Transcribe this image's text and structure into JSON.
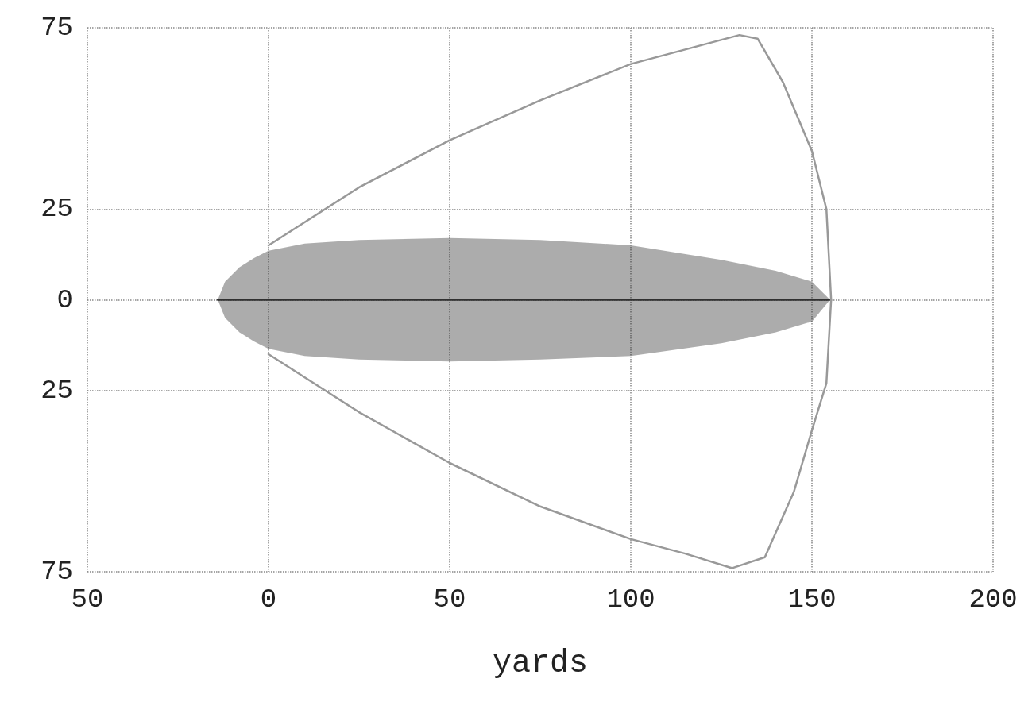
{
  "chart_data": {
    "type": "line",
    "xlabel": "yards",
    "xlim": [
      -50,
      200
    ],
    "ylim": [
      -75,
      75
    ],
    "xticks": [
      {
        "value": -50,
        "label": "50"
      },
      0,
      50,
      100,
      150,
      200
    ],
    "yticks": [
      {
        "value": -75,
        "label": "75"
      },
      {
        "value": -25,
        "label": "25"
      },
      0,
      25,
      75
    ],
    "grid": true,
    "marker": "none",
    "line_style": "solid",
    "series": [
      {
        "color": "#303030",
        "x": [
          -14,
          -12,
          -8,
          -4,
          0,
          10,
          25,
          50,
          75,
          100,
          125,
          140,
          150,
          155
        ],
        "values": [
          0,
          0,
          0,
          0,
          0,
          0,
          0,
          0,
          0,
          0,
          0,
          0,
          0,
          0
        ],
        "lower": [
          0,
          -5,
          -9,
          -11.5,
          -13.5,
          -15.5,
          -16.5,
          -17,
          -16.5,
          -15.5,
          -12,
          -9,
          -6,
          0
        ],
        "upper": [
          0,
          5,
          9,
          11.5,
          13.5,
          15.5,
          16.5,
          17,
          16.5,
          15,
          11,
          8,
          5,
          0
        ]
      },
      {
        "color": "#999999",
        "x": [
          0,
          25,
          50,
          75,
          100,
          115,
          130,
          135,
          142,
          150,
          154,
          155.3,
          154,
          150,
          145,
          137,
          128,
          115,
          100,
          75,
          50,
          25,
          0
        ],
        "values": [
          15,
          31,
          44,
          55,
          65,
          69,
          73,
          72,
          60,
          41,
          25,
          0,
          -23,
          -36,
          -53,
          -71,
          -74,
          -70,
          -66,
          -57,
          -45,
          -31,
          -15
        ]
      }
    ]
  }
}
